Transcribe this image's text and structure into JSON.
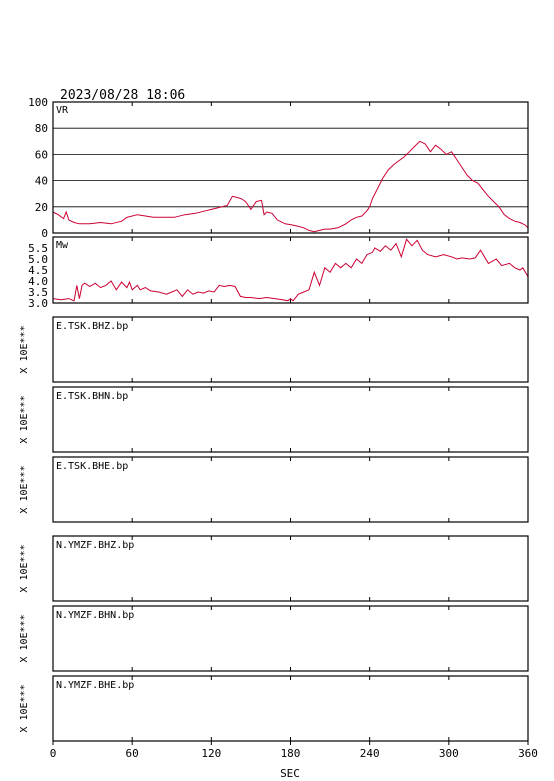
{
  "header": {
    "datetime": "2023/08/28 18:06"
  },
  "colors": {
    "trace": "#cc0033",
    "axis": "#000000",
    "grid": "#000000"
  },
  "chart_data": [
    {
      "type": "line",
      "label": "VR",
      "ylim": [
        0,
        100
      ],
      "yticks": [
        "100",
        "80",
        "60",
        "40",
        "20",
        "0"
      ],
      "grid": true,
      "x": [
        0,
        4,
        8,
        10,
        12,
        16,
        20,
        28,
        36,
        44,
        52,
        56,
        60,
        64,
        70,
        76,
        84,
        92,
        100,
        108,
        116,
        120,
        124,
        128,
        132,
        136,
        140,
        143,
        146,
        150,
        154,
        158,
        160,
        162,
        166,
        170,
        176,
        182,
        186,
        190,
        194,
        198,
        202,
        206,
        210,
        216,
        222,
        226,
        230,
        234,
        238,
        240,
        242,
        246,
        250,
        254,
        258,
        262,
        266,
        270,
        274,
        278,
        282,
        286,
        290,
        294,
        298,
        302,
        306,
        310,
        314,
        318,
        322,
        326,
        330,
        334,
        338,
        342,
        346,
        350,
        354,
        358,
        360
      ],
      "y": [
        16,
        14,
        11,
        16,
        10,
        8,
        7,
        7,
        8,
        7,
        9,
        12,
        13,
        14,
        13,
        12,
        12,
        12,
        14,
        15,
        17,
        18,
        19,
        20,
        21,
        28,
        27,
        26,
        24,
        18,
        24,
        25,
        14,
        16,
        15,
        10,
        7,
        6,
        5,
        4,
        2,
        1,
        2,
        3,
        3,
        4,
        7,
        10,
        12,
        13,
        17,
        20,
        26,
        34,
        42,
        48,
        52,
        55,
        58,
        62,
        66,
        70,
        68,
        62,
        67,
        64,
        60,
        62,
        56,
        50,
        44,
        40,
        38,
        33,
        28,
        24,
        20,
        14,
        11,
        9,
        8,
        6,
        4
      ]
    },
    {
      "type": "line",
      "label": "Mw",
      "ylim": [
        3.0,
        6.0
      ],
      "yticks": [
        "5.5",
        "5.0",
        "4.5",
        "4.0",
        "3.5",
        "3.0"
      ],
      "grid": false,
      "x": [
        0,
        6,
        12,
        16,
        18,
        20,
        22,
        24,
        28,
        32,
        36,
        40,
        44,
        48,
        52,
        56,
        58,
        60,
        64,
        66,
        70,
        74,
        80,
        86,
        90,
        94,
        98,
        102,
        106,
        110,
        114,
        118,
        122,
        126,
        130,
        134,
        138,
        142,
        146,
        150,
        156,
        162,
        168,
        174,
        178,
        180,
        182,
        186,
        190,
        194,
        198,
        202,
        206,
        210,
        214,
        218,
        222,
        226,
        230,
        234,
        238,
        242,
        244,
        248,
        252,
        256,
        260,
        264,
        268,
        272,
        276,
        280,
        284,
        290,
        296,
        302,
        306,
        310,
        316,
        320,
        324,
        330,
        336,
        340,
        346,
        350,
        354,
        356,
        360
      ],
      "y": [
        3.2,
        3.15,
        3.2,
        3.1,
        3.8,
        3.2,
        3.8,
        3.9,
        3.75,
        3.9,
        3.7,
        3.8,
        4.0,
        3.6,
        3.95,
        3.7,
        3.95,
        3.6,
        3.8,
        3.6,
        3.7,
        3.55,
        3.5,
        3.4,
        3.5,
        3.6,
        3.3,
        3.6,
        3.4,
        3.5,
        3.45,
        3.55,
        3.5,
        3.8,
        3.75,
        3.8,
        3.75,
        3.3,
        3.25,
        3.25,
        3.2,
        3.25,
        3.2,
        3.15,
        3.1,
        3.2,
        3.1,
        3.4,
        3.5,
        3.6,
        4.4,
        3.8,
        4.6,
        4.4,
        4.8,
        4.6,
        4.8,
        4.6,
        5.0,
        4.8,
        5.2,
        5.3,
        5.5,
        5.35,
        5.6,
        5.4,
        5.7,
        5.1,
        5.9,
        5.6,
        5.85,
        5.4,
        5.2,
        5.1,
        5.2,
        5.1,
        5.0,
        5.05,
        5.0,
        5.05,
        5.4,
        4.8,
        5.0,
        4.7,
        4.8,
        4.6,
        4.5,
        4.6,
        4.2
      ]
    }
  ],
  "traces": [
    {
      "label": "E.TSK.BHZ.bp",
      "ylabel": "X 10E***"
    },
    {
      "label": "E.TSK.BHN.bp",
      "ylabel": "X 10E***"
    },
    {
      "label": "E.TSK.BHE.bp",
      "ylabel": "X 10E***"
    },
    {
      "label": "N.YMZF.BHZ.bp",
      "ylabel": "X 10E***"
    },
    {
      "label": "N.YMZF.BHN.bp",
      "ylabel": "X 10E***"
    },
    {
      "label": "N.YMZF.BHE.bp",
      "ylabel": "X 10E***"
    }
  ],
  "x_axis": {
    "xlim": [
      0,
      360
    ],
    "ticks": [
      "0",
      "60",
      "120",
      "180",
      "240",
      "300",
      "360"
    ],
    "xlabel": "SEC"
  }
}
